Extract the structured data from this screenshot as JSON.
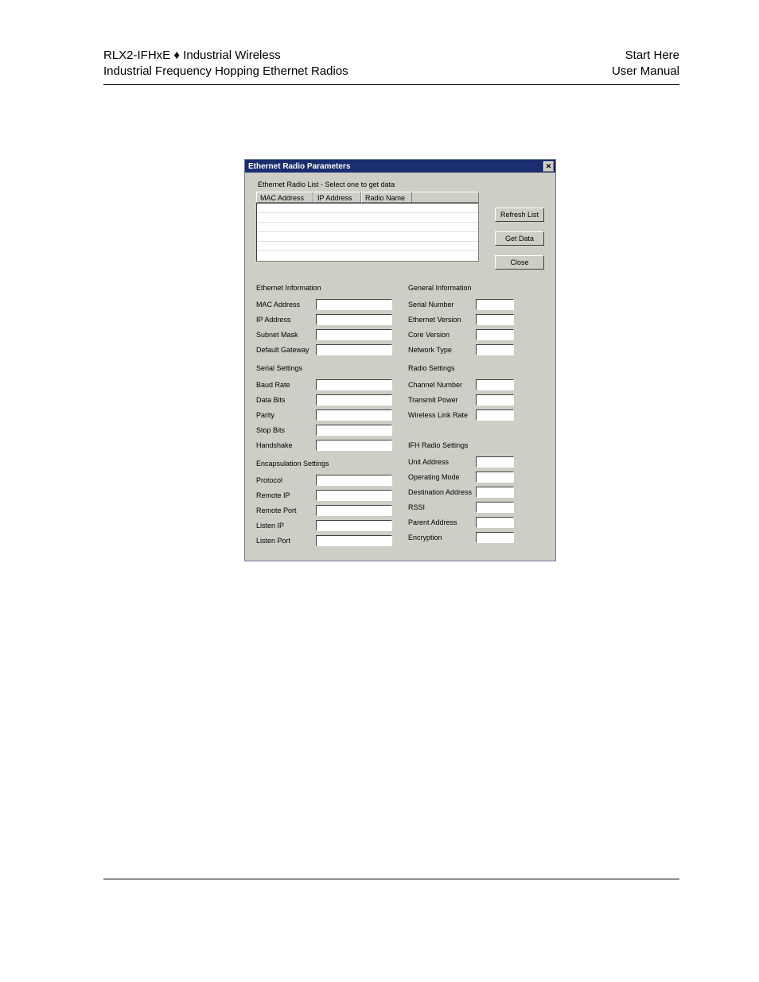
{
  "header": {
    "left_line1_prefix": "RLX2-IFHxE ",
    "left_line1_bullet": "♦",
    "left_line1_suffix": " Industrial Wireless",
    "left_line2": "Industrial Frequency Hopping Ethernet Radios",
    "right_line1": "Start Here",
    "right_line2": "User Manual"
  },
  "dialog": {
    "title": "Ethernet Radio Parameters",
    "list_label": "Ethernet Radio List - Select one to get data",
    "columns": {
      "c1": "MAC Address",
      "c2": "IP Address",
      "c3": "Radio Name"
    },
    "buttons": {
      "refresh": "Refresh List",
      "get": "Get Data",
      "close": "Close"
    },
    "sections": {
      "eth_info": {
        "heading": "Ethernet Information",
        "mac": "MAC Address",
        "ip": "IP Address",
        "subnet": "Subnet Mask",
        "gateway": "Default Gateway"
      },
      "serial": {
        "heading": "Serial Settings",
        "baud": "Baud Rate",
        "databits": "Data Bits",
        "parity": "Parity",
        "stopbits": "Stop Bits",
        "handshake": "Handshake"
      },
      "encap": {
        "heading": "Encapsulation Settings",
        "protocol": "Protocol",
        "remote_ip": "Remote IP",
        "remote_port": "Remote Port",
        "listen_ip": "Listen IP",
        "listen_port": "Listen Port"
      },
      "general": {
        "heading": "General Information",
        "serial_no": "Serial Number",
        "eth_ver": "Ethernet Version",
        "core_ver": "Core Version",
        "net_type": "Network Type"
      },
      "radio": {
        "heading": "Radio Settings",
        "channel": "Channel Number",
        "tx_power": "Transmit Power",
        "link_rate": "Wireless Link Rate"
      },
      "ifh": {
        "heading": "IFH Radio Settings",
        "unit_addr": "Unit Address",
        "op_mode": "Operating Mode",
        "dest_addr": "Destination Address",
        "rssi": "RSSI",
        "parent_addr": "Parent Address",
        "encryption": "Encryption"
      }
    }
  }
}
